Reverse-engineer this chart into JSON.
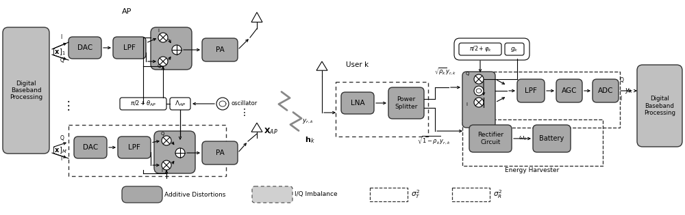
{
  "bg_color": "#ffffff",
  "block_color": "#a8a8a8",
  "block_light": "#c0c0c0",
  "block_edge": "#333333",
  "text_color": "#000000",
  "legend": {
    "additive_label": "Additive Distortions",
    "iq_label": "I/Q Imbalance",
    "sigma_T": "sigma_T",
    "sigma_R": "sigma_R"
  }
}
